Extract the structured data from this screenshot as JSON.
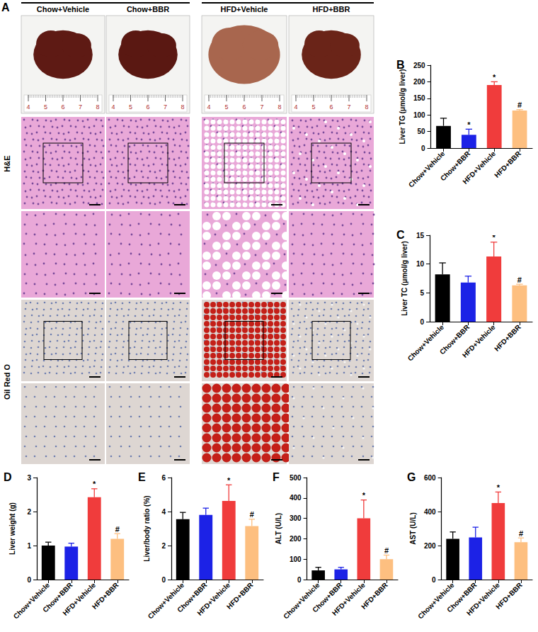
{
  "panel_a": {
    "panel": "A",
    "groups": [
      "Chow+Vehicle",
      "Chow+BBR",
      "HFD+Vehicle",
      "HFD+BBR"
    ],
    "rows": [
      "H&E",
      "Oil Red O"
    ],
    "ruler": [
      4,
      5,
      6,
      7,
      8
    ]
  },
  "chart_data": [
    {
      "type": "bar",
      "panel": "B",
      "y_label": "Liver TG (μmol/g liver)",
      "categories": [
        "Chow+Vehicle",
        "Chow+BBR",
        "HFD+Vehicle",
        "HFD+BBR"
      ],
      "values": [
        67,
        40,
        190,
        113
      ],
      "errors": [
        23,
        17,
        10,
        3
      ],
      "annotations": [
        null,
        "*",
        "*",
        "#"
      ],
      "colors": [
        "#000000",
        "#1c22e6",
        "#f03c3c",
        "#fdbf80"
      ],
      "ylim": [
        0,
        250
      ],
      "yticks": [
        0,
        50,
        100,
        150,
        200,
        250
      ],
      "grid": false
    },
    {
      "type": "bar",
      "panel": "C",
      "y_label": "Liver TC (μmol/g liver)",
      "categories": [
        "Chow+Vehicle",
        "Chow+BBR",
        "HFD+Vehicle",
        "HFD+BBR"
      ],
      "values": [
        8.2,
        6.8,
        11.3,
        6.3
      ],
      "errors": [
        2.0,
        1.1,
        2.5,
        0.2
      ],
      "annotations": [
        null,
        null,
        "*",
        "#"
      ],
      "colors": [
        "#000000",
        "#1c22e6",
        "#f03c3c",
        "#fdbf80"
      ],
      "ylim": [
        0,
        15
      ],
      "yticks": [
        0,
        5,
        10,
        15
      ],
      "grid": false
    },
    {
      "type": "bar",
      "panel": "D",
      "y_label": "Liver weight (g)",
      "categories": [
        "Chow+Vehicle",
        "Chow+BBR",
        "HFD+Vehicle",
        "HFD+BBR"
      ],
      "values": [
        1.0,
        0.97,
        2.42,
        1.2
      ],
      "errors": [
        0.1,
        0.1,
        0.25,
        0.15
      ],
      "annotations": [
        null,
        null,
        "*",
        "#"
      ],
      "colors": [
        "#000000",
        "#1c22e6",
        "#f03c3c",
        "#fdbf80"
      ],
      "ylim": [
        0,
        3
      ],
      "yticks": [
        0,
        1,
        2,
        3
      ],
      "grid": false
    },
    {
      "type": "bar",
      "panel": "E",
      "y_label": "Liver/body ratio (%)",
      "categories": [
        "Chow+Vehicle",
        "Chow+BBR",
        "HFD+Vehicle",
        "HFD+BBR"
      ],
      "values": [
        3.55,
        3.8,
        4.62,
        3.15
      ],
      "errors": [
        0.4,
        0.4,
        0.95,
        0.4
      ],
      "annotations": [
        null,
        null,
        "*",
        "#"
      ],
      "colors": [
        "#000000",
        "#1c22e6",
        "#f03c3c",
        "#fdbf80"
      ],
      "ylim": [
        0,
        6
      ],
      "yticks": [
        0,
        2,
        4,
        6
      ],
      "grid": false
    },
    {
      "type": "bar",
      "panel": "F",
      "y_label": "ALT (U/L)",
      "categories": [
        "Chow+Vehicle",
        "Chow+BBR",
        "HFD+Vehicle",
        "HFD+BBR"
      ],
      "values": [
        45,
        50,
        300,
        100
      ],
      "errors": [
        15,
        10,
        90,
        20
      ],
      "annotations": [
        null,
        null,
        "*",
        "#"
      ],
      "colors": [
        "#000000",
        "#1c22e6",
        "#f03c3c",
        "#fdbf80"
      ],
      "ylim": [
        0,
        500
      ],
      "yticks": [
        0,
        100,
        200,
        300,
        400,
        500
      ],
      "grid": false
    },
    {
      "type": "bar",
      "panel": "G",
      "y_label": "AST (U/L)",
      "categories": [
        "Chow+Vehicle",
        "Chow+BBR",
        "HFD+Vehicle",
        "HFD+BBR"
      ],
      "values": [
        240,
        248,
        450,
        220
      ],
      "errors": [
        40,
        60,
        65,
        25
      ],
      "annotations": [
        null,
        null,
        "*",
        "#"
      ],
      "colors": [
        "#000000",
        "#1c22e6",
        "#f03c3c",
        "#fdbf80"
      ],
      "ylim": [
        0,
        600
      ],
      "yticks": [
        0,
        200,
        400,
        600
      ],
      "grid": false
    }
  ]
}
